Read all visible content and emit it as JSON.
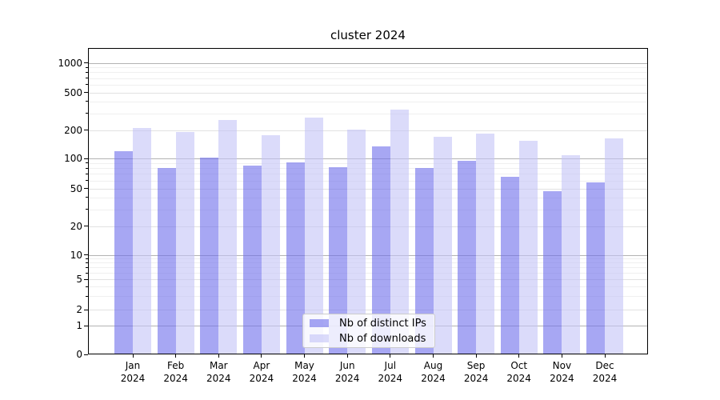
{
  "chart_data": {
    "type": "bar",
    "title": "cluster 2024",
    "categories": [
      "Jan 2024",
      "Feb 2024",
      "Mar 2024",
      "Apr 2024",
      "May 2024",
      "Jun 2024",
      "Jul 2024",
      "Aug 2024",
      "Sep 2024",
      "Oct 2024",
      "Nov 2024",
      "Dec 2024"
    ],
    "series": [
      {
        "name": "Nb of distinct IPs",
        "color": "rgba(108,108,235,0.6)",
        "values": [
          120,
          80,
          103,
          85,
          92,
          82,
          135,
          80,
          95,
          65,
          47,
          57
        ]
      },
      {
        "name": "Nb of downloads",
        "color": "rgba(195,195,247,0.6)",
        "values": [
          210,
          190,
          255,
          175,
          270,
          202,
          330,
          168,
          185,
          155,
          108,
          163
        ]
      }
    ],
    "xlabel": "",
    "ylabel": "",
    "yscale": "symlog",
    "ylim": [
      0,
      1400
    ],
    "y_ticks": [
      0,
      1,
      2,
      5,
      10,
      20,
      50,
      100,
      200,
      500,
      1000
    ],
    "y_minor_ticks": [
      3,
      4,
      6,
      7,
      8,
      9,
      30,
      40,
      60,
      70,
      80,
      90,
      300,
      400,
      600,
      700,
      800,
      900
    ],
    "emphasized_gridlines": [
      1,
      10,
      100,
      1000
    ],
    "grid": true,
    "legend_position": "lower center"
  },
  "colors": {
    "series_dark": "rgba(108,108,235,0.6)",
    "series_light": "rgba(195,195,247,0.6)",
    "grid_emphasis": "#b3b3b3",
    "grid_major": "#e2e2e2",
    "grid_minor": "#f0f0f0",
    "spine": "#000000",
    "legend_border": "#cccccc",
    "legend_bg": "rgba(255,255,255,0.8)"
  }
}
